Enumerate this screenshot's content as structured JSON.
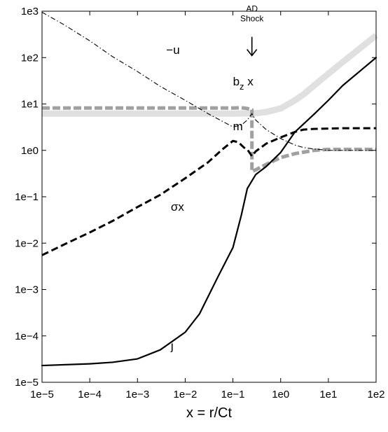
{
  "chart_data": {
    "type": "line",
    "xlabel": "x = r/Ct",
    "ylabel": "",
    "xscale": "log",
    "yscale": "log",
    "xlim": [
      1e-05,
      100
    ],
    "ylim": [
      1e-05,
      1000
    ],
    "grid": false,
    "x_ticks": [
      {
        "value": 1e-05,
        "label": "1e−5"
      },
      {
        "value": 0.0001,
        "label": "1e−4"
      },
      {
        "value": 0.001,
        "label": "1e−3"
      },
      {
        "value": 0.01,
        "label": "1e−2"
      },
      {
        "value": 0.1,
        "label": "1e−1"
      },
      {
        "value": 1,
        "label": "1e0"
      },
      {
        "value": 10,
        "label": "1e1"
      },
      {
        "value": 100,
        "label": "1e2"
      }
    ],
    "y_ticks": [
      {
        "value": 1e-05,
        "label": "1e−5"
      },
      {
        "value": 0.0001,
        "label": "1e−4"
      },
      {
        "value": 0.001,
        "label": "1e−3"
      },
      {
        "value": 0.01,
        "label": "1e−2"
      },
      {
        "value": 0.1,
        "label": "1e−1"
      },
      {
        "value": 1,
        "label": "1e0"
      },
      {
        "value": 10,
        "label": "1e1"
      },
      {
        "value": 100,
        "label": "1e2"
      },
      {
        "value": 1000,
        "label": "1e3"
      }
    ],
    "annotation": {
      "line1": "AD",
      "line2": "Shock",
      "x": 0.25,
      "y_text": 600,
      "arrow_from": 280,
      "arrow_to": 110
    },
    "series": [
      {
        "key": "m",
        "color": "#e0e0e0",
        "style": "thick",
        "label": "m",
        "label_at": [
          0.1,
          2.7
        ],
        "x": [
          1e-05,
          0.0001,
          0.001,
          0.01,
          0.1,
          0.3,
          0.5,
          1,
          2,
          3,
          5,
          10,
          20,
          50,
          100
        ],
        "y": [
          6.2,
          6.2,
          6.2,
          6.2,
          6.2,
          6.3,
          6.7,
          8,
          12,
          16,
          25,
          45,
          80,
          170,
          300
        ]
      },
      {
        "key": "bz",
        "color": "#a0a0a0",
        "style": "dashed-thick",
        "label_main": "b",
        "label_sub": "z",
        "label_tail": " x",
        "label_at": [
          0.1,
          25
        ],
        "x": [
          1e-05,
          0.0001,
          0.001,
          0.01,
          0.05,
          0.1,
          0.15,
          0.2,
          0.25,
          0.25,
          0.3,
          0.5,
          1,
          2,
          5,
          10,
          20,
          50,
          100
        ],
        "y": [
          8.2,
          8.2,
          8.2,
          8.2,
          8.2,
          8.2,
          8.3,
          8.0,
          7.5,
          0.35,
          0.38,
          0.5,
          0.7,
          0.85,
          1.0,
          1.05,
          1.05,
          1.05,
          1.05
        ]
      },
      {
        "key": "u",
        "color": "#000000",
        "style": "dashdot",
        "label": "−u",
        "label_at": [
          0.004,
          120
        ],
        "x": [
          1e-05,
          3e-05,
          0.0001,
          0.0003,
          0.001,
          0.003,
          0.01,
          0.03,
          0.1,
          0.15,
          0.2,
          0.25,
          0.3,
          0.5,
          1,
          2,
          3,
          5,
          10,
          20,
          50,
          100
        ],
        "y": [
          950,
          500,
          230,
          105,
          50,
          24,
          12,
          6.2,
          3.2,
          3.5,
          4.5,
          6.2,
          4.5,
          2.8,
          1.8,
          1.3,
          1.15,
          1.07,
          1.0,
          1.0,
          1.0,
          1.0
        ]
      },
      {
        "key": "sigma",
        "color": "#000000",
        "style": "dashed",
        "label": "σx",
        "label_at": [
          0.005,
          0.05
        ],
        "x": [
          1e-05,
          3e-05,
          0.0001,
          0.0003,
          0.001,
          0.003,
          0.01,
          0.03,
          0.06,
          0.1,
          0.13,
          0.17,
          0.2,
          0.25,
          0.3,
          0.5,
          1,
          2,
          3,
          5,
          10,
          20,
          50,
          100
        ],
        "y": [
          0.0055,
          0.0095,
          0.017,
          0.03,
          0.06,
          0.11,
          0.25,
          0.55,
          1.05,
          1.6,
          1.5,
          1.15,
          1.05,
          0.75,
          0.95,
          1.4,
          1.9,
          2.5,
          2.8,
          2.9,
          2.95,
          3.0,
          3.0,
          3.0
        ]
      },
      {
        "key": "j",
        "color": "#000000",
        "style": "solid",
        "label": "j",
        "label_at": [
          0.005,
          5e-05
        ],
        "x": [
          1e-05,
          0.0001,
          0.0003,
          0.001,
          0.003,
          0.01,
          0.02,
          0.05,
          0.1,
          0.15,
          0.2,
          0.25,
          0.3,
          0.5,
          1,
          2,
          5,
          10,
          20,
          50,
          100
        ],
        "y": [
          2.3e-05,
          2.5e-05,
          2.7e-05,
          3.2e-05,
          5e-05,
          0.00012,
          0.0003,
          0.002,
          0.008,
          0.04,
          0.15,
          0.22,
          0.3,
          0.45,
          0.9,
          2.5,
          6,
          12,
          25,
          55,
          100
        ]
      }
    ]
  }
}
